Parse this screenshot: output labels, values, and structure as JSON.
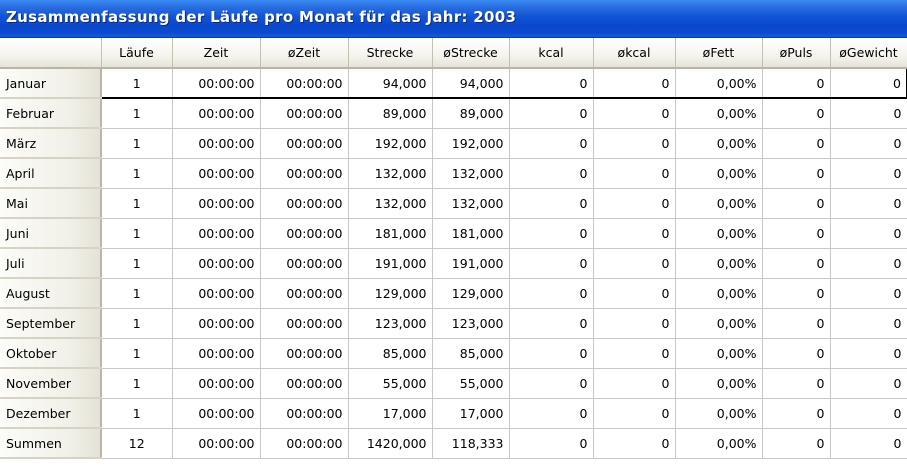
{
  "window": {
    "title": "Zusammenfassung der Läufe pro Monat für das Jahr: 2003"
  },
  "table": {
    "corner": "",
    "columns": [
      "Läufe",
      "Zeit",
      "øZeit",
      "Strecke",
      "øStrecke",
      "kcal",
      "økcal",
      "øFett",
      "øPuls",
      "øGewicht"
    ],
    "rows": [
      {
        "label": "Januar",
        "values": [
          "1",
          "00:00:00",
          "00:00:00",
          "94,000",
          "94,000",
          "0",
          "0",
          "0,00%",
          "0",
          "0"
        ]
      },
      {
        "label": "Februar",
        "values": [
          "1",
          "00:00:00",
          "00:00:00",
          "89,000",
          "89,000",
          "0",
          "0",
          "0,00%",
          "0",
          "0"
        ]
      },
      {
        "label": "März",
        "values": [
          "1",
          "00:00:00",
          "00:00:00",
          "192,000",
          "192,000",
          "0",
          "0",
          "0,00%",
          "0",
          "0"
        ]
      },
      {
        "label": "April",
        "values": [
          "1",
          "00:00:00",
          "00:00:00",
          "132,000",
          "132,000",
          "0",
          "0",
          "0,00%",
          "0",
          "0"
        ]
      },
      {
        "label": "Mai",
        "values": [
          "1",
          "00:00:00",
          "00:00:00",
          "132,000",
          "132,000",
          "0",
          "0",
          "0,00%",
          "0",
          "0"
        ]
      },
      {
        "label": "Juni",
        "values": [
          "1",
          "00:00:00",
          "00:00:00",
          "181,000",
          "181,000",
          "0",
          "0",
          "0,00%",
          "0",
          "0"
        ]
      },
      {
        "label": "Juli",
        "values": [
          "1",
          "00:00:00",
          "00:00:00",
          "191,000",
          "191,000",
          "0",
          "0",
          "0,00%",
          "0",
          "0"
        ]
      },
      {
        "label": "August",
        "values": [
          "1",
          "00:00:00",
          "00:00:00",
          "129,000",
          "129,000",
          "0",
          "0",
          "0,00%",
          "0",
          "0"
        ]
      },
      {
        "label": "September",
        "values": [
          "1",
          "00:00:00",
          "00:00:00",
          "123,000",
          "123,000",
          "0",
          "0",
          "0,00%",
          "0",
          "0"
        ]
      },
      {
        "label": "Oktober",
        "values": [
          "1",
          "00:00:00",
          "00:00:00",
          "85,000",
          "85,000",
          "0",
          "0",
          "0,00%",
          "0",
          "0"
        ]
      },
      {
        "label": "November",
        "values": [
          "1",
          "00:00:00",
          "00:00:00",
          "55,000",
          "55,000",
          "0",
          "0",
          "0,00%",
          "0",
          "0"
        ]
      },
      {
        "label": "Dezember",
        "values": [
          "1",
          "00:00:00",
          "00:00:00",
          "17,000",
          "17,000",
          "0",
          "0",
          "0,00%",
          "0",
          "0"
        ]
      }
    ],
    "summary": {
      "label": "Summen",
      "values": [
        "12",
        "00:00:00",
        "00:00:00",
        "1420,000",
        "118,333",
        "0",
        "0",
        "0,00%",
        "0",
        "0"
      ]
    },
    "selected_row": 0
  },
  "colors": {
    "titlebar": "#0a47cc",
    "title_text": "#ffffff",
    "selection_border": "#000000",
    "header_bg": "#f1f0e8"
  }
}
